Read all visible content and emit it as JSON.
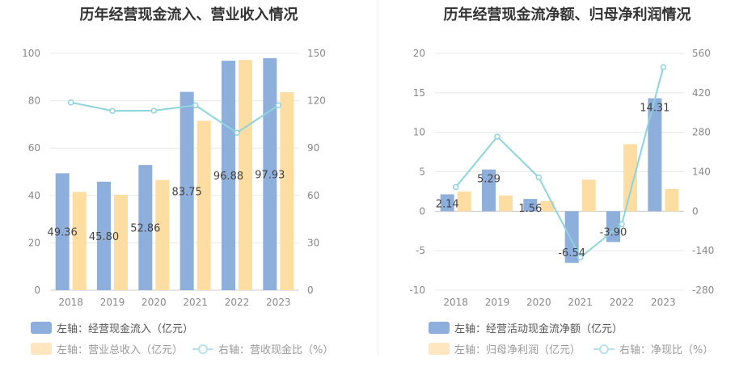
{
  "colors": {
    "bar1": "#8eaedc",
    "bar2": "#fedda2",
    "line": "#8ed4dd",
    "grid": "#e8e8e8",
    "axis": "#cccccc"
  },
  "chart_data": [
    {
      "type": "bar",
      "title": "历年经营现金流入、营业收入情况",
      "categories": [
        "2018",
        "2019",
        "2020",
        "2021",
        "2022",
        "2023"
      ],
      "left_axis": {
        "min": 0,
        "max": 100,
        "ticks": [
          0,
          20,
          40,
          60,
          80,
          100
        ]
      },
      "right_axis": {
        "min": 0,
        "max": 150,
        "ticks": [
          0,
          30,
          60,
          90,
          120,
          150
        ]
      },
      "series": [
        {
          "name": "左轴：经营现金流入（亿元）",
          "type": "bar",
          "axis": "left",
          "values": [
            49.36,
            45.8,
            52.86,
            83.75,
            96.88,
            97.93
          ],
          "labels": [
            "49.36",
            "45.80",
            "52.86",
            "83.75",
            "96.88",
            "97.93"
          ]
        },
        {
          "name": "左轴：营业总收入（亿元）",
          "type": "bar",
          "axis": "left",
          "values": [
            41.5,
            40.3,
            46.5,
            71.5,
            97.2,
            83.6
          ]
        },
        {
          "name": "右轴：营收现金比（%）",
          "type": "line",
          "axis": "right",
          "values": [
            118.9,
            113.6,
            113.7,
            117.1,
            99.7,
            117.1
          ]
        }
      ]
    },
    {
      "type": "bar",
      "title": "历年经营现金流净额、归母净利润情况",
      "categories": [
        "2018",
        "2019",
        "2020",
        "2021",
        "2022",
        "2023"
      ],
      "left_axis": {
        "min": -10,
        "max": 20,
        "ticks": [
          -10,
          -5,
          0,
          5,
          10,
          15,
          20
        ]
      },
      "right_axis": {
        "min": -280,
        "max": 560,
        "ticks": [
          -280,
          -140,
          0,
          140,
          280,
          420,
          560
        ]
      },
      "series": [
        {
          "name": "左轴：经营活动现金流净额（亿元）",
          "type": "bar",
          "axis": "left",
          "values": [
            2.14,
            5.29,
            1.56,
            -6.54,
            -3.9,
            14.31
          ],
          "labels": [
            "2.14",
            "5.29",
            "1.56",
            "-6.54",
            "-3.90",
            "14.31"
          ]
        },
        {
          "name": "左轴：归母净利润（亿元）",
          "type": "bar",
          "axis": "left",
          "values": [
            2.5,
            2.0,
            1.3,
            4.0,
            8.5,
            2.8
          ]
        },
        {
          "name": "右轴：净现比（%）",
          "type": "line",
          "axis": "right",
          "values": [
            85.6,
            264.5,
            120.0,
            -163.5,
            -45.9,
            511.1
          ]
        }
      ]
    }
  ]
}
